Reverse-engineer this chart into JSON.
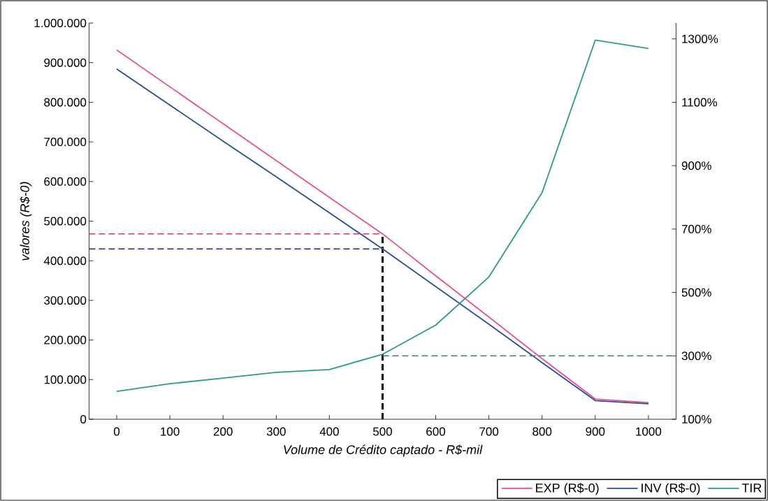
{
  "chart_data": {
    "type": "line",
    "xlabel": "Volume de Crédito captado - R$-mil",
    "ylabel": "valores (R$-0)",
    "x": [
      0,
      100,
      200,
      300,
      400,
      500,
      600,
      700,
      800,
      900,
      1000
    ],
    "xlim": [
      -52,
      1052
    ],
    "xticks": [
      0,
      100,
      200,
      300,
      400,
      500,
      600,
      700,
      800,
      900,
      1000
    ],
    "ylim": [
      0,
      1000000
    ],
    "yticks": [
      {
        "value": 0,
        "label": "0"
      },
      {
        "value": 100000,
        "label": "100.000"
      },
      {
        "value": 200000,
        "label": "200.000"
      },
      {
        "value": 300000,
        "label": "300.000"
      },
      {
        "value": 400000,
        "label": "400.000"
      },
      {
        "value": 500000,
        "label": "500.000"
      },
      {
        "value": 600000,
        "label": "600.000"
      },
      {
        "value": 700000,
        "label": "700.000"
      },
      {
        "value": 800000,
        "label": "800.000"
      },
      {
        "value": 900000,
        "label": "900.000"
      },
      {
        "value": 1000000,
        "label": "1.000.000"
      }
    ],
    "y2lim": [
      100,
      1350
    ],
    "y2ticks": [
      {
        "value": 100,
        "label": "100%"
      },
      {
        "value": 300,
        "label": "300%"
      },
      {
        "value": 500,
        "label": "500%"
      },
      {
        "value": 700,
        "label": "700%"
      },
      {
        "value": 900,
        "label": "900%"
      },
      {
        "value": 1100,
        "label": "1100%"
      },
      {
        "value": 1300,
        "label": "1300%"
      }
    ],
    "series": [
      {
        "name": "EXP (R$-0)",
        "color": "#e8508a",
        "values": [
          932000,
          839000,
          746000,
          653000,
          560000,
          468000,
          362000,
          258000,
          153000,
          51000,
          42000
        ]
      },
      {
        "name": "INV (R$-0)",
        "color": "#2a4a9e",
        "values": [
          884000,
          793000,
          702000,
          612000,
          521000,
          430000,
          335000,
          240000,
          143000,
          47000,
          39000
        ]
      },
      {
        "name": "TIR",
        "color": "#2a9a8a",
        "axis": "y2",
        "values": [
          188,
          212,
          230,
          248,
          257,
          305,
          397,
          549,
          815,
          1296,
          1270
        ]
      }
    ],
    "ref_lines": [
      {
        "axis": "y",
        "value": 468000,
        "color": "#d6366e",
        "line_style": "dashed"
      },
      {
        "axis": "y",
        "value": 430000,
        "color": "#1f2a80",
        "line_style": "dashed"
      },
      {
        "axis": "y2",
        "value": 300,
        "color": "#2a8a80",
        "line_style": "dashed"
      },
      {
        "axis": "x",
        "value": 500,
        "color": "#000000",
        "line_style": "dashed"
      }
    ],
    "legend": "bottom right"
  }
}
